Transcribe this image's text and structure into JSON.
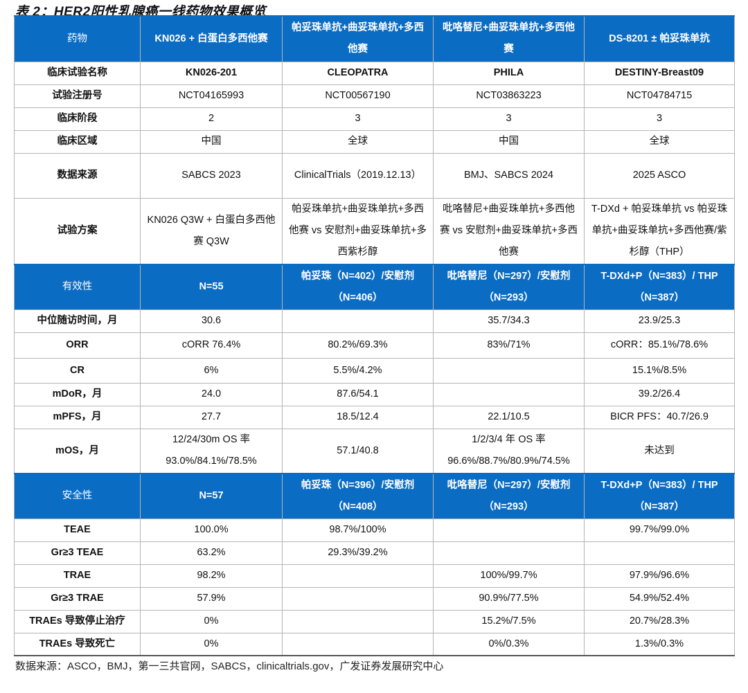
{
  "title": "表 2：HER2阳性乳腺癌一线药物效果概览",
  "colors": {
    "header_bg": "#0b6cc3",
    "header_text": "#ffffff"
  },
  "rows": [
    {
      "type": "header",
      "h": 66,
      "cells": [
        "药物",
        "KN026 + 白蛋白多西他赛",
        "帕妥珠单抗+曲妥珠单抗+多西他赛",
        "吡咯替尼+曲妥珠单抗+多西他赛",
        "DS-8201 ± 帕妥珠单抗"
      ]
    },
    {
      "type": "boldrow",
      "h": 33,
      "cells": [
        "临床试验名称",
        "KN026-201",
        "CLEOPATRA",
        "PHILA",
        "DESTINY-Breast09"
      ]
    },
    {
      "type": "data",
      "h": 33,
      "cells": [
        "试验注册号",
        "NCT04165993",
        "NCT00567190",
        "NCT03863223",
        "NCT04784715"
      ]
    },
    {
      "type": "data",
      "h": 33,
      "cells": [
        "临床阶段",
        "2",
        "3",
        "3",
        "3"
      ]
    },
    {
      "type": "data",
      "h": 33,
      "cells": [
        "临床区域",
        "中国",
        "全球",
        "中国",
        "全球"
      ]
    },
    {
      "type": "data",
      "h": 65,
      "cells": [
        "数据来源",
        "SABCS 2023",
        "ClinicalTrials（2019.12.13）",
        "BMJ、SABCS 2024",
        "2025 ASCO"
      ]
    },
    {
      "type": "data",
      "h": 96,
      "cells": [
        "试验方案",
        "KN026 Q3W + 白蛋白多西他赛 Q3W",
        "帕妥珠单抗+曲妥珠单抗+多西他赛 vs 安慰剂+曲妥珠单抗+多西紫杉醇",
        "吡咯替尼+曲妥珠单抗+多西他赛 vs 安慰剂+曲妥珠单抗+多西他赛",
        "T-DXd + 帕妥珠单抗 vs 帕妥珠单抗+曲妥珠单抗+多西他赛/紫杉醇（THP）"
      ]
    },
    {
      "type": "header",
      "h": 65,
      "cells": [
        "有效性",
        "N=55",
        "帕妥珠（N=402）/安慰剂（N=406）",
        "吡咯替尼（N=297）/安慰剂（N=293）",
        "T-DXd+P（N=383）/ THP（N=387）"
      ]
    },
    {
      "type": "data",
      "h": 33,
      "cells": [
        "中位随访时间，月",
        "30.6",
        "",
        "35.7/34.3",
        "23.9/25.3"
      ]
    },
    {
      "type": "data",
      "h": 37,
      "cells": [
        "ORR",
        "cORR 76.4%",
        "80.2%/69.3%",
        "83%/71%",
        "cORR：85.1%/78.6%"
      ]
    },
    {
      "type": "data",
      "h": 36,
      "cells": [
        "CR",
        "6%",
        "5.5%/4.2%",
        "",
        "15.1%/8.5%"
      ]
    },
    {
      "type": "data",
      "h": 33,
      "cells": [
        "mDoR，月",
        "24.0",
        "87.6/54.1",
        "",
        "39.2/26.4"
      ]
    },
    {
      "type": "data",
      "h": 33,
      "cells": [
        "mPFS，月",
        "27.7",
        "18.5/12.4",
        "22.1/10.5",
        "BICR PFS：40.7/26.9"
      ]
    },
    {
      "type": "data",
      "h": 65,
      "cells": [
        "mOS，月",
        "12/24/30m OS 率 93.0%/84.1%/78.5%",
        "57.1/40.8",
        "1/2/3/4 年 OS 率 96.6%/88.7%/80.9%/74.5%",
        "未达到"
      ]
    },
    {
      "type": "header",
      "h": 65,
      "cells": [
        "安全性",
        "N=57",
        "帕妥珠（N=396）/安慰剂（N=408）",
        "吡咯替尼（N=297）/安慰剂（N=293）",
        "T-DXd+P（N=383）/ THP（N=387）"
      ]
    },
    {
      "type": "data",
      "h": 33,
      "cells": [
        "TEAE",
        "100.0%",
        "98.7%/100%",
        "",
        "99.7%/99.0%"
      ]
    },
    {
      "type": "data",
      "h": 33,
      "cells": [
        "Gr≥3 TEAE",
        "63.2%",
        "29.3%/39.2%",
        "",
        ""
      ]
    },
    {
      "type": "data",
      "h": 33,
      "cells": [
        "TRAE",
        "98.2%",
        "",
        "100%/99.7%",
        "97.9%/96.6%"
      ]
    },
    {
      "type": "data",
      "h": 33,
      "cells": [
        "Gr≥3 TRAE",
        "57.9%",
        "",
        "90.9%/77.5%",
        "54.9%/52.4%"
      ]
    },
    {
      "type": "data",
      "h": 33,
      "cells": [
        "TRAEs 导致停止治疗",
        "0%",
        "",
        "15.2%/7.5%",
        "20.7%/28.3%"
      ]
    },
    {
      "type": "data",
      "h": 32,
      "cells": [
        "TRAEs 导致死亡",
        "0%",
        "",
        "0%/0.3%",
        "1.3%/0.3%"
      ]
    }
  ],
  "source": "数据来源：ASCO，BMJ，第一三共官网，SABCS，clinicaltrials.gov，广发证券发展研究中心"
}
